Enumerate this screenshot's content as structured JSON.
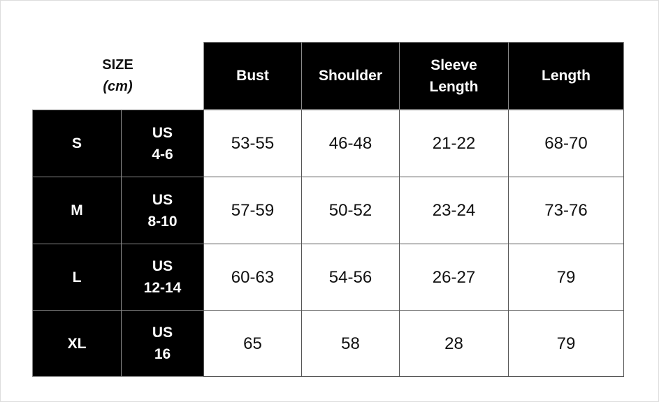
{
  "size_header": {
    "line1": "SIZE",
    "line2": "(cm)"
  },
  "columns": [
    "Bust",
    "Shoulder",
    "Sleeve Length",
    "Length"
  ],
  "columns_split": [
    [
      "Bust"
    ],
    [
      "Shoulder"
    ],
    [
      "Sleeve",
      "Length"
    ],
    [
      "Length"
    ]
  ],
  "rows": [
    {
      "size": "S",
      "us_label": "US",
      "us": "4-6",
      "values": [
        "53-55",
        "46-48",
        "21-22",
        "68-70"
      ]
    },
    {
      "size": "M",
      "us_label": "US",
      "us": "8-10",
      "values": [
        "57-59",
        "50-52",
        "23-24",
        "73-76"
      ]
    },
    {
      "size": "L",
      "us_label": "US",
      "us": "12-14",
      "values": [
        "60-63",
        "54-56",
        "26-27",
        "79"
      ]
    },
    {
      "size": "XL",
      "us_label": "US",
      "us": "16",
      "values": [
        "65",
        "58",
        "28",
        "79"
      ]
    }
  ]
}
